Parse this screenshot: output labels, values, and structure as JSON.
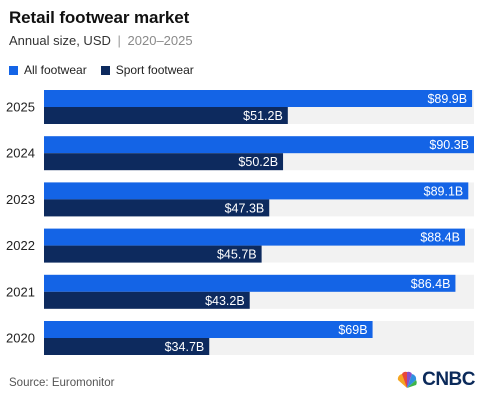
{
  "header": {
    "title": "Retail footwear market",
    "subtitle_main": "Annual size, USD",
    "subtitle_sep": "|",
    "subtitle_range": "2020–2025"
  },
  "colors": {
    "all_footwear": "#1464e6",
    "sport_footwear": "#0d2a5e",
    "track": "#f2f2f2",
    "label_text": "#ffffff"
  },
  "footer": {
    "source": "Source: Euromonitor",
    "logo_text": "CNBC",
    "logo_icon": "peacock-icon"
  },
  "chart_data": {
    "type": "bar",
    "orientation": "horizontal",
    "categories": [
      "2025",
      "2024",
      "2023",
      "2022",
      "2021",
      "2020"
    ],
    "series": [
      {
        "name": "All footwear",
        "values": [
          89.9,
          90.3,
          89.1,
          88.4,
          86.4,
          69
        ],
        "labels": [
          "$89.9B",
          "$90.3B",
          "$89.1B",
          "$88.4B",
          "$86.4B",
          "$69B"
        ]
      },
      {
        "name": "Sport footwear",
        "values": [
          51.2,
          50.2,
          47.3,
          45.7,
          43.2,
          34.7
        ],
        "labels": [
          "$51.2B",
          "$50.2B",
          "$47.3B",
          "$45.7B",
          "$43.2B",
          "$34.7B"
        ]
      }
    ],
    "xlim": [
      0,
      90.3
    ],
    "legend": "top-left",
    "grid": false
  }
}
